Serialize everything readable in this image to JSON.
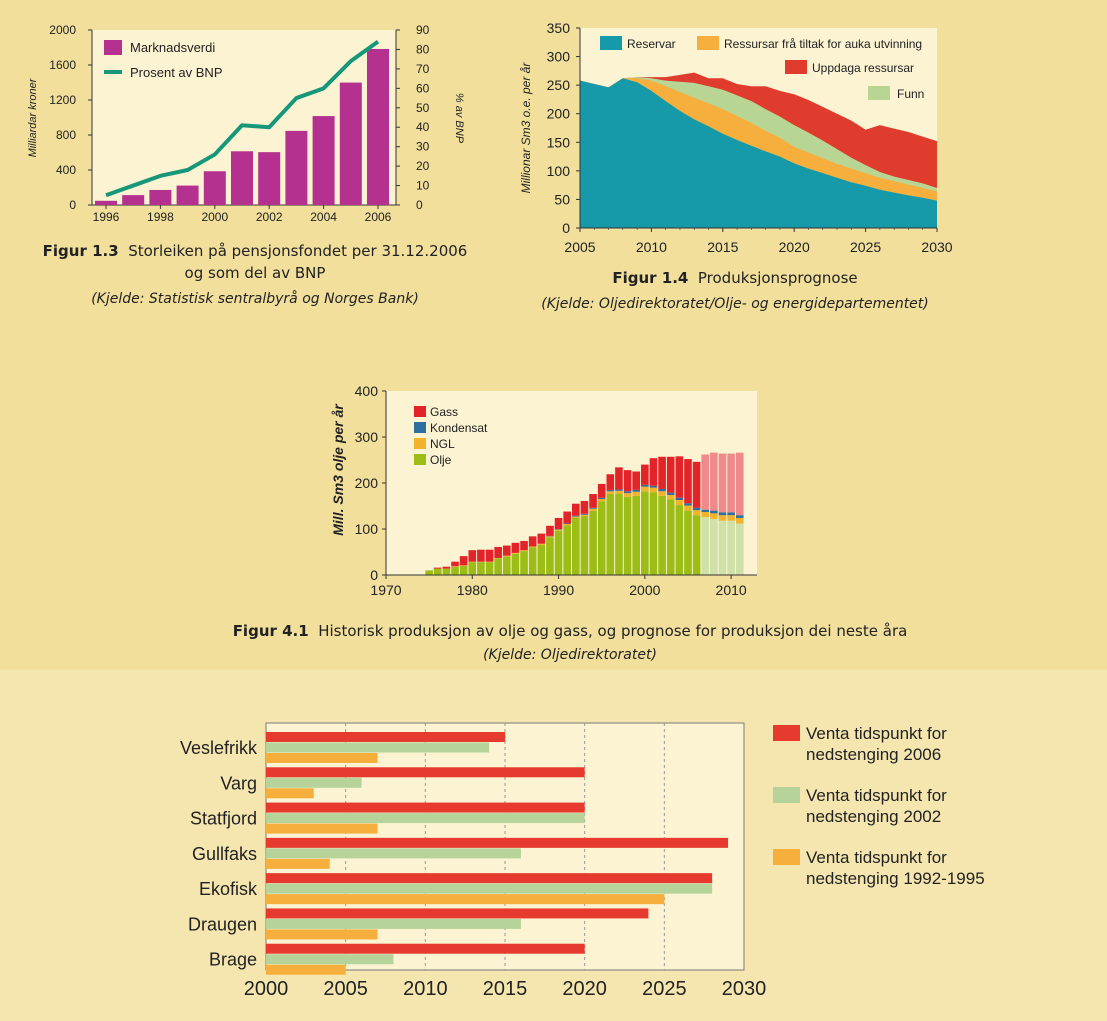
{
  "fig13": {
    "caption_num": "Figur 1.3",
    "caption_line1": "Storleiken på pensjonsfondet per 31.12.2006",
    "caption_line2": "og som del av BNP",
    "source": "(Kjelde: Statistisk sentralbyrå og Norges Bank)"
  },
  "fig14": {
    "caption_num": "Figur 1.4",
    "caption_line1": "Produksjonsprognose",
    "source": "(Kjelde: Oljedirektoratet/Olje- og energidepartementet)"
  },
  "fig41": {
    "caption_num": "Figur 4.1",
    "caption_line1": "Historisk produksjon av olje og gass, og prognose for produksjon dei neste åra",
    "source": "(Kjelde: Oljedirektoratet)"
  },
  "chart_data": [
    {
      "id": "fig13",
      "type": "bar",
      "ylabel": "Milliardar kroner",
      "y2label": "% av BNP",
      "ylim": [
        0,
        2000
      ],
      "y2lim": [
        0,
        90
      ],
      "yticks": [
        "0",
        "400",
        "800",
        "1200",
        "1600",
        "2000"
      ],
      "y2ticks": [
        "0",
        "10",
        "20",
        "30",
        "40",
        "50",
        "60",
        "70",
        "80",
        "90"
      ],
      "xticks": [
        "1996",
        "1998",
        "2000",
        "2002",
        "2004",
        "2006"
      ],
      "categories": [
        "1996",
        "1997",
        "1998",
        "1999",
        "2000",
        "2001",
        "2002",
        "2003",
        "2004",
        "2005",
        "2006"
      ],
      "series": [
        {
          "name": "Marknadsverdi",
          "type": "bar",
          "color": "#b5318f",
          "values": [
            48,
            113,
            172,
            222,
            386,
            614,
            604,
            847,
            1016,
            1399,
            1783
          ]
        },
        {
          "name": "Prosent av BNP",
          "type": "line",
          "color": "#16977a",
          "values": [
            5,
            10,
            15,
            18,
            26,
            41,
            40,
            55,
            60,
            74,
            84
          ]
        }
      ]
    },
    {
      "id": "fig14",
      "type": "area",
      "ylabel": "Millionar Sm3 o.e. per år",
      "ylim": [
        0,
        350
      ],
      "yticks": [
        "0",
        "50",
        "100",
        "150",
        "200",
        "250",
        "300",
        "350"
      ],
      "xticks": [
        "2005",
        "2010",
        "2015",
        "2020",
        "2025",
        "2030"
      ],
      "x": [
        2005,
        2006,
        2007,
        2008,
        2009,
        2010,
        2011,
        2012,
        2013,
        2014,
        2015,
        2016,
        2017,
        2018,
        2019,
        2020,
        2021,
        2022,
        2023,
        2024,
        2025,
        2026,
        2027,
        2028,
        2029,
        2030
      ],
      "series": [
        {
          "name": "Reservar",
          "color": "#169aaa",
          "values": [
            258,
            252,
            246,
            262,
            255,
            240,
            222,
            205,
            190,
            178,
            165,
            154,
            144,
            134,
            125,
            113,
            104,
            96,
            88,
            80,
            74,
            67,
            62,
            57,
            53,
            48
          ]
        },
        {
          "name": "Ressursar frå tiltak for auka utvinning",
          "color": "#f6ae3c",
          "values": [
            258,
            252,
            246,
            262,
            262,
            258,
            248,
            238,
            228,
            218,
            208,
            196,
            184,
            170,
            158,
            142,
            132,
            122,
            112,
            104,
            96,
            88,
            82,
            76,
            70,
            64
          ]
        },
        {
          "name": "Funn",
          "color": "#b9d593",
          "values": [
            258,
            252,
            246,
            262,
            264,
            262,
            258,
            256,
            254,
            248,
            242,
            232,
            222,
            208,
            195,
            180,
            167,
            153,
            138,
            123,
            110,
            98,
            90,
            84,
            78,
            70
          ]
        },
        {
          "name": "Uppdaga ressursar",
          "color": "#e03c2e",
          "values": [
            258,
            252,
            246,
            262,
            264,
            264,
            264,
            268,
            272,
            262,
            262,
            252,
            248,
            248,
            240,
            234,
            224,
            212,
            200,
            188,
            172,
            180,
            174,
            168,
            160,
            152
          ]
        }
      ]
    },
    {
      "id": "fig41",
      "type": "bar",
      "stacked": true,
      "ylabel": "Mill. Sm3 olje per år",
      "ylim": [
        0,
        400
      ],
      "yticks": [
        "0",
        "100",
        "200",
        "300",
        "400"
      ],
      "xticks": [
        "1970",
        "1980",
        "1990",
        "2000",
        "2010"
      ],
      "legend": [
        "Gass",
        "Kondensat",
        "NGL",
        "Olje"
      ],
      "colors": {
        "Gass": "#e3232a",
        "Kondensat": "#2e6fa0",
        "NGL": "#f2b22b",
        "Olje": "#9bbd16",
        "GassPrognose": "#ef8a8a",
        "OljePrognose": "#cfe0a8"
      },
      "categories": [
        1971,
        1972,
        1973,
        1974,
        1975,
        1976,
        1977,
        1978,
        1979,
        1980,
        1981,
        1982,
        1983,
        1984,
        1985,
        1986,
        1987,
        1988,
        1989,
        1990,
        1991,
        1992,
        1993,
        1994,
        1995,
        1996,
        1997,
        1998,
        1999,
        2000,
        2001,
        2002,
        2003,
        2004,
        2005,
        2006,
        2007,
        2008,
        2009,
        2010,
        2011
      ],
      "prognosis_from": 2007,
      "olje": [
        0,
        0,
        0,
        0,
        10,
        14,
        14,
        18,
        20,
        28,
        28,
        28,
        36,
        40,
        46,
        52,
        60,
        66,
        82,
        96,
        108,
        124,
        128,
        140,
        160,
        176,
        176,
        170,
        172,
        182,
        180,
        172,
        164,
        152,
        140,
        130,
        126,
        122,
        118,
        118,
        112
      ],
      "ngl": [
        0,
        0,
        0,
        0,
        0,
        0,
        0,
        1,
        1,
        1,
        1,
        1,
        1,
        2,
        2,
        2,
        2,
        2,
        2,
        3,
        3,
        3,
        3,
        4,
        5,
        6,
        7,
        8,
        9,
        10,
        10,
        10,
        10,
        11,
        11,
        11,
        11,
        12,
        12,
        12,
        12
      ],
      "kondensat": [
        0,
        0,
        0,
        0,
        0,
        0,
        0,
        0,
        0,
        0,
        0,
        0,
        0,
        0,
        0,
        0,
        0,
        0,
        1,
        1,
        1,
        2,
        2,
        2,
        3,
        3,
        3,
        4,
        4,
        4,
        4,
        5,
        5,
        5,
        5,
        5,
        5,
        6,
        6,
        6,
        6
      ],
      "gass": [
        0,
        0,
        0,
        0,
        0,
        2,
        4,
        10,
        20,
        25,
        26,
        26,
        24,
        22,
        22,
        20,
        22,
        22,
        22,
        24,
        26,
        26,
        28,
        30,
        30,
        34,
        48,
        46,
        40,
        44,
        60,
        70,
        78,
        90,
        96,
        100,
        120,
        126,
        128,
        128,
        136
      ]
    },
    {
      "id": "shutdown",
      "type": "bar",
      "orientation": "horizontal",
      "xlim": [
        2000,
        2030
      ],
      "xticks": [
        "2000",
        "2005",
        "2010",
        "2015",
        "2020",
        "2025",
        "2030"
      ],
      "categories": [
        "Veslefrikk",
        "Varg",
        "Statfjord",
        "Gullfaks",
        "Ekofisk",
        "Draugen",
        "Brage"
      ],
      "series": [
        {
          "name": "Venta tidspunkt for nedstenging 2006",
          "color": "#e63a2e",
          "values": [
            2015,
            2020,
            2020,
            2029,
            2028,
            2024,
            2020
          ]
        },
        {
          "name": "Venta tidspunkt for nedstenging 2002",
          "color": "#b6d39a",
          "values": [
            2014,
            2006,
            2020,
            2016,
            2028,
            2016,
            2008
          ]
        },
        {
          "name": "Venta tidspunkt for nedstenging 1992-1995",
          "color": "#f6ae3c",
          "values": [
            2007,
            2003,
            2007,
            2004,
            2025,
            2007,
            2005
          ]
        }
      ],
      "legend_lines": [
        [
          "Venta tidspunkt for",
          "nedstenging 2006"
        ],
        [
          "Venta tidspunkt for",
          "nedstenging 2002"
        ],
        [
          "Venta tidspunkt for",
          "nedstenging 1992-1995"
        ]
      ]
    }
  ]
}
